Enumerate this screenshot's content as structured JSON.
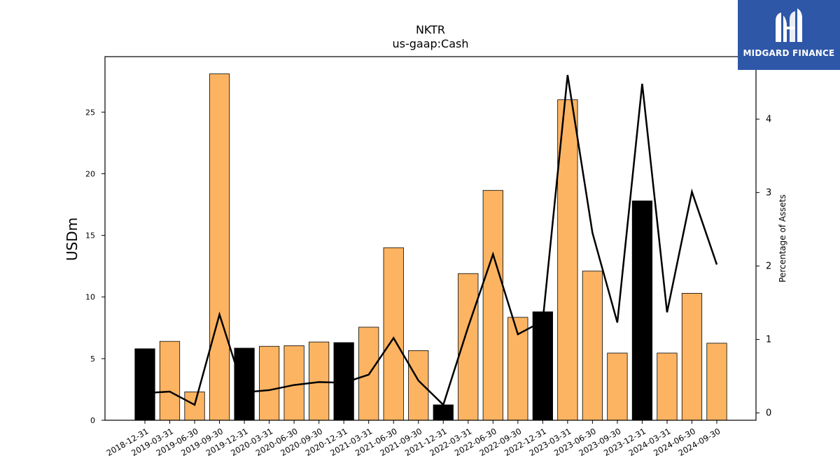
{
  "chart_data": {
    "type": "bar+line",
    "title": "NKTR",
    "subtitle": "us-gaap:Cash",
    "ylabel": "USDm",
    "y2label": "Percentage of Assets",
    "ylim": [
      0,
      29.5
    ],
    "y2lim": [
      -0.1,
      4.85
    ],
    "yticks": [
      0,
      5,
      10,
      15,
      20,
      25
    ],
    "y2ticks": [
      0,
      1,
      2,
      3,
      4
    ],
    "categories": [
      "2018-12-31",
      "2019-03-31",
      "2019-06-30",
      "2019-09-30",
      "2019-12-31",
      "2020-03-31",
      "2020-06-30",
      "2020-09-30",
      "2020-12-31",
      "2021-03-31",
      "2021-06-30",
      "2021-09-30",
      "2021-12-31",
      "2022-03-31",
      "2022-06-30",
      "2022-09-30",
      "2022-12-31",
      "2023-03-31",
      "2023-06-30",
      "2023-09-30",
      "2023-12-31",
      "2024-03-31",
      "2024-06-30",
      "2024-09-30"
    ],
    "series": [
      {
        "type": "bar",
        "values": [
          5.8,
          6.4,
          2.3,
          28.1,
          5.85,
          6.0,
          6.05,
          6.35,
          6.3,
          7.55,
          14.0,
          5.65,
          1.25,
          11.9,
          18.65,
          8.35,
          8.8,
          26.0,
          12.1,
          5.45,
          17.8,
          5.45,
          10.3,
          6.25
        ],
        "colors": [
          "#000000",
          "#fdb462",
          "#fdb462",
          "#fdb462",
          "#000000",
          "#fdb462",
          "#fdb462",
          "#fdb462",
          "#000000",
          "#fdb462",
          "#fdb462",
          "#fdb462",
          "#000000",
          "#fdb462",
          "#fdb462",
          "#fdb462",
          "#000000",
          "#fdb462",
          "#fdb462",
          "#fdb462",
          "#000000",
          "#fdb462",
          "#fdb462",
          "#fdb462"
        ]
      },
      {
        "type": "line",
        "axis": "right",
        "values": [
          0.27,
          0.29,
          0.11,
          1.34,
          0.28,
          0.31,
          0.38,
          0.42,
          0.41,
          0.52,
          1.02,
          0.44,
          0.11,
          1.17,
          2.16,
          1.07,
          1.25,
          4.6,
          2.45,
          1.23,
          4.48,
          1.37,
          3.01,
          2.02
        ],
        "color": "#000000"
      }
    ],
    "grid": false,
    "legend": "none"
  },
  "logo": {
    "text": "MIDGARD FINANCE",
    "background": "#2f57a8",
    "icon": "midgard-logo-icon"
  }
}
